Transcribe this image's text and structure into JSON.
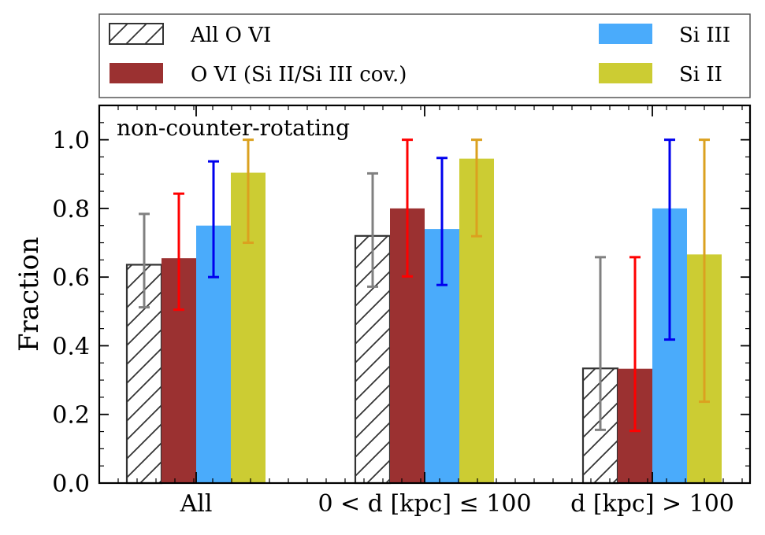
{
  "chart_data": {
    "type": "bar",
    "title": "",
    "annotation": "non-counter-rotating",
    "xlabel": "",
    "ylabel": "Fraction",
    "ylim": [
      0,
      1.1
    ],
    "yticks": [
      0.0,
      0.2,
      0.4,
      0.6,
      0.8,
      1.0
    ],
    "ytick_labels": [
      "0.0",
      "0.2",
      "0.4",
      "0.6",
      "0.8",
      "1.0"
    ],
    "grid": false,
    "legend_position": "top (outside, above plot)",
    "categories": [
      "All",
      "0 < d [kpc] ≤ 100",
      "d [kpc] > 100"
    ],
    "series": [
      {
        "name": "All O VI",
        "fill": "hatched",
        "color": "#ffffff",
        "edge": "#333333",
        "err_color": "#808080",
        "values": [
          0.636,
          0.72,
          0.334
        ],
        "err_low": [
          0.512,
          0.572,
          0.155
        ],
        "err_high": [
          0.784,
          0.902,
          0.658
        ]
      },
      {
        "name": "O VI (Si II/Si III cov.)",
        "fill": "solid",
        "color": "#9b3131",
        "err_color": "#ff0000",
        "values": [
          0.655,
          0.8,
          0.333
        ],
        "err_low": [
          0.505,
          0.602,
          0.152
        ],
        "err_high": [
          0.843,
          1.0,
          0.658
        ]
      },
      {
        "name": "Si III",
        "fill": "solid",
        "color": "#4aabfb",
        "err_color": "#0000ee",
        "values": [
          0.75,
          0.74,
          0.8
        ],
        "err_low": [
          0.6,
          0.577,
          0.418
        ],
        "err_high": [
          0.937,
          0.947,
          1.0
        ]
      },
      {
        "name": "Si II",
        "fill": "solid",
        "color": "#cccc33",
        "err_color": "#dba11f",
        "values": [
          0.904,
          0.945,
          0.666
        ],
        "err_low": [
          0.7,
          0.719,
          0.237
        ],
        "err_high": [
          1.0,
          1.0,
          1.0
        ]
      }
    ]
  }
}
